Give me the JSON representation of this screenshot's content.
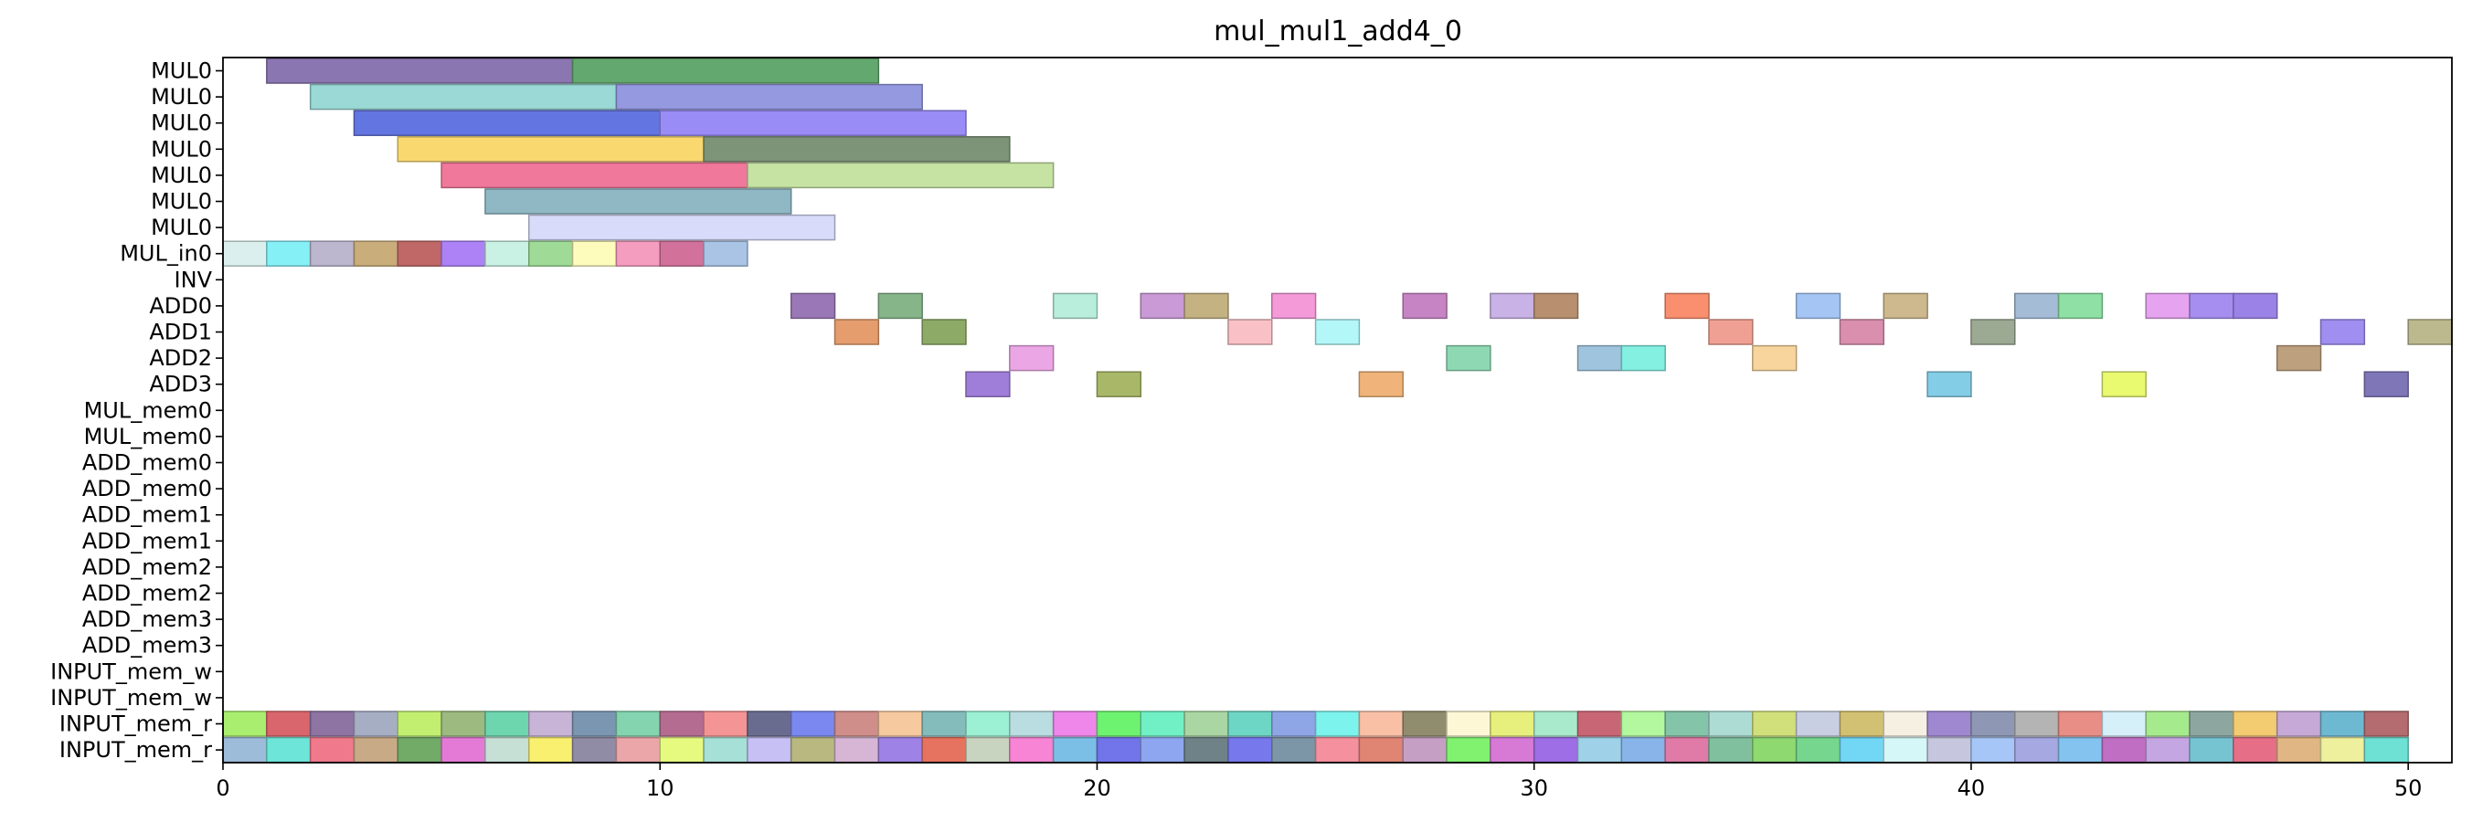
{
  "chart_data": {
    "type": "gantt",
    "title": "mul_mul1_add4_0",
    "xlabel": "",
    "ylabel": "",
    "xlim": [
      0,
      51
    ],
    "xticks": [
      0,
      10,
      20,
      30,
      40,
      50
    ],
    "rows": [
      "MUL0",
      "MUL0",
      "MUL0",
      "MUL0",
      "MUL0",
      "MUL0",
      "MUL0",
      "MUL_in0",
      "INV",
      "ADD0",
      "ADD1",
      "ADD2",
      "ADD3",
      "MUL_mem0",
      "MUL_mem0",
      "ADD_mem0",
      "ADD_mem0",
      "ADD_mem1",
      "ADD_mem1",
      "ADD_mem2",
      "ADD_mem2",
      "ADD_mem3",
      "ADD_mem3",
      "INPUT_mem_w",
      "INPUT_mem_w",
      "INPUT_mem_r",
      "INPUT_mem_r"
    ],
    "tasks": [
      {
        "row": 0,
        "start": 1,
        "end": 8,
        "color": "#8a76b0"
      },
      {
        "row": 0,
        "start": 8,
        "end": 15,
        "color": "#63a86e"
      },
      {
        "row": 1,
        "start": 2,
        "end": 9,
        "color": "#9ad9d6"
      },
      {
        "row": 1,
        "start": 9,
        "end": 16,
        "color": "#9499e0"
      },
      {
        "row": 2,
        "start": 3,
        "end": 10,
        "color": "#6375e0"
      },
      {
        "row": 2,
        "start": 10,
        "end": 17,
        "color": "#9a8cf7"
      },
      {
        "row": 3,
        "start": 4,
        "end": 11,
        "color": "#f9d870"
      },
      {
        "row": 3,
        "start": 11,
        "end": 18,
        "color": "#7d9478"
      },
      {
        "row": 4,
        "start": 5,
        "end": 12,
        "color": "#f0789b"
      },
      {
        "row": 4,
        "start": 12,
        "end": 19,
        "color": "#c6e3a4"
      },
      {
        "row": 5,
        "start": 6,
        "end": 13,
        "color": "#8fb8c4"
      },
      {
        "row": 6,
        "start": 7,
        "end": 14,
        "color": "#d8dbfa"
      },
      {
        "row": 7,
        "start": 0,
        "end": 1,
        "color": "#dbf0ee"
      },
      {
        "row": 7,
        "start": 1,
        "end": 2,
        "color": "#86f0f7"
      },
      {
        "row": 7,
        "start": 2,
        "end": 3,
        "color": "#bcb7cf"
      },
      {
        "row": 7,
        "start": 3,
        "end": 4,
        "color": "#c9ad7a"
      },
      {
        "row": 7,
        "start": 4,
        "end": 5,
        "color": "#c06868"
      },
      {
        "row": 7,
        "start": 5,
        "end": 6,
        "color": "#ad82f7"
      },
      {
        "row": 7,
        "start": 6,
        "end": 7,
        "color": "#c9f2e5"
      },
      {
        "row": 7,
        "start": 7,
        "end": 8,
        "color": "#9fdb96"
      },
      {
        "row": 7,
        "start": 8,
        "end": 9,
        "color": "#fdfcbd"
      },
      {
        "row": 7,
        "start": 9,
        "end": 10,
        "color": "#f59dbf"
      },
      {
        "row": 7,
        "start": 10,
        "end": 11,
        "color": "#d2729a"
      },
      {
        "row": 7,
        "start": 11,
        "end": 12,
        "color": "#aac4e6"
      },
      {
        "row": 9,
        "start": 13,
        "end": 14,
        "color": "#9a78b8"
      },
      {
        "row": 9,
        "start": 15,
        "end": 16,
        "color": "#86b58a"
      },
      {
        "row": 9,
        "start": 19,
        "end": 20,
        "color": "#b8eedb"
      },
      {
        "row": 9,
        "start": 21,
        "end": 22,
        "color": "#c99ad6"
      },
      {
        "row": 9,
        "start": 22,
        "end": 23,
        "color": "#c4b283"
      },
      {
        "row": 9,
        "start": 24,
        "end": 25,
        "color": "#f59ad9"
      },
      {
        "row": 9,
        "start": 27,
        "end": 28,
        "color": "#c784c4"
      },
      {
        "row": 9,
        "start": 29,
        "end": 30,
        "color": "#c9b2e6"
      },
      {
        "row": 9,
        "start": 30,
        "end": 31,
        "color": "#b8906f"
      },
      {
        "row": 9,
        "start": 33,
        "end": 34,
        "color": "#f98f6e"
      },
      {
        "row": 9,
        "start": 36,
        "end": 37,
        "color": "#a5c6f5"
      },
      {
        "row": 9,
        "start": 38,
        "end": 39,
        "color": "#cdb98d"
      },
      {
        "row": 9,
        "start": 41,
        "end": 42,
        "color": "#a5bcd6"
      },
      {
        "row": 9,
        "start": 42,
        "end": 43,
        "color": "#8ee0a4"
      },
      {
        "row": 9,
        "start": 44,
        "end": 45,
        "color": "#e5a3f0"
      },
      {
        "row": 9,
        "start": 45,
        "end": 46,
        "color": "#a58ef0"
      },
      {
        "row": 9,
        "start": 46,
        "end": 47,
        "color": "#9a82e6"
      },
      {
        "row": 10,
        "start": 14,
        "end": 15,
        "color": "#e59d6e"
      },
      {
        "row": 10,
        "start": 16,
        "end": 17,
        "color": "#8eaa67"
      },
      {
        "row": 10,
        "start": 23,
        "end": 24,
        "color": "#f9c1c6"
      },
      {
        "row": 10,
        "start": 25,
        "end": 26,
        "color": "#b3f7f9"
      },
      {
        "row": 10,
        "start": 34,
        "end": 35,
        "color": "#f0a093"
      },
      {
        "row": 10,
        "start": 37,
        "end": 38,
        "color": "#d98fad"
      },
      {
        "row": 10,
        "start": 40,
        "end": 41,
        "color": "#9caa94"
      },
      {
        "row": 10,
        "start": 48,
        "end": 49,
        "color": "#a08ef0"
      },
      {
        "row": 10,
        "start": 50,
        "end": 51,
        "color": "#bdb98f"
      },
      {
        "row": 11,
        "start": 18,
        "end": 19,
        "color": "#eba6e5"
      },
      {
        "row": 11,
        "start": 28,
        "end": 29,
        "color": "#8ed9b3"
      },
      {
        "row": 11,
        "start": 31,
        "end": 32,
        "color": "#9fc4dd"
      },
      {
        "row": 11,
        "start": 32,
        "end": 33,
        "color": "#84f0e2"
      },
      {
        "row": 11,
        "start": 35,
        "end": 36,
        "color": "#f7d59d"
      },
      {
        "row": 11,
        "start": 47,
        "end": 48,
        "color": "#bda07d"
      },
      {
        "row": 12,
        "start": 17,
        "end": 18,
        "color": "#9f7ed9"
      },
      {
        "row": 12,
        "start": 20,
        "end": 21,
        "color": "#a8b868"
      },
      {
        "row": 12,
        "start": 26,
        "end": 27,
        "color": "#f0b47a"
      },
      {
        "row": 12,
        "start": 39,
        "end": 40,
        "color": "#84cde6"
      },
      {
        "row": 12,
        "start": 43,
        "end": 44,
        "color": "#e9f970"
      },
      {
        "row": 12,
        "start": 49,
        "end": 50,
        "color": "#7f76b8"
      }
    ],
    "input_mem_r_row1_colors": [
      "#a9ee6e",
      "#d9666c",
      "#8e74a3",
      "#a6aec4",
      "#c2ef70",
      "#9dba80",
      "#6ed6ae",
      "#c8b4d6",
      "#7b96b0",
      "#84d4b0",
      "#b46c90",
      "#f59494",
      "#6a6c8f",
      "#7a88f0",
      "#cf8e8a",
      "#f7c99f",
      "#84bcbc",
      "#9cf0d4",
      "#b9dde0",
      "#ef86ea",
      "#6ef370",
      "#70f0c4",
      "#aad6a3",
      "#6ed6c4",
      "#8ea6e6",
      "#7cf3ec",
      "#f9c0a6",
      "#908c6e",
      "#fdf7d6",
      "#e7f07d",
      "#a9e9cc",
      "#c96676",
      "#b3f79f",
      "#84c4a8",
      "#acdcd4",
      "#d2e07c",
      "#c9cfe3",
      "#d2c172",
      "#f5f0e2",
      "#9f88d0",
      "#8e98b4",
      "#b4b4b4",
      "#e88e86",
      "#d6f0f9",
      "#a6ea8e",
      "#8ea6a0",
      "#f3cb70",
      "#c6a9d6",
      "#6eb9d2",
      "#b46c70"
    ],
    "input_mem_r_row2_colors": [
      "#9dbcd9",
      "#6ee5d9",
      "#f07a8c",
      "#c9aa86",
      "#72aa68",
      "#e47ad6",
      "#c6e0d6",
      "#faf070",
      "#908ca6",
      "#eaa6a8",
      "#e6fa80",
      "#a6e0d6",
      "#c6c0f5",
      "#b8b880",
      "#d6b6d4",
      "#9f82e6",
      "#e6735f",
      "#c9d4c0",
      "#f784d4",
      "#7cbfe6",
      "#7274ea",
      "#8ea6f0",
      "#6e8288",
      "#7778ec",
      "#7c96a8",
      "#f5909f",
      "#e08474",
      "#c6a0c4",
      "#80f270",
      "#d67ad6",
      "#9d6ee6",
      "#9fd2e9",
      "#88b4e9",
      "#e07aa6",
      "#80c09f",
      "#8ed970",
      "#76d68e",
      "#72d6f5",
      "#d6f7f7",
      "#c6c6de",
      "#a6c6f7",
      "#a6a8e2",
      "#84c2f0",
      "#c06ec4",
      "#c4a6e2",
      "#76c4d2",
      "#e66e86",
      "#e0b684",
      "#eef09d",
      "#6ee0d4"
    ]
  }
}
